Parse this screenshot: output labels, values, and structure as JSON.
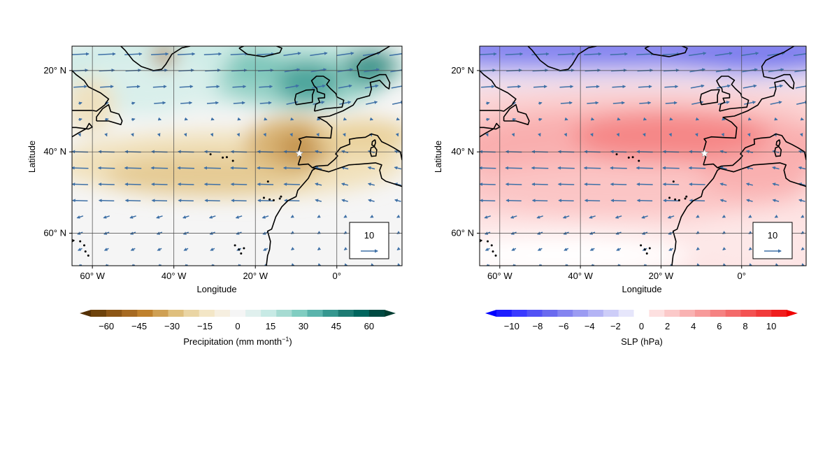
{
  "panels": [
    {
      "id": "precip",
      "xlabel": "Longitude",
      "ylabel": "Latitude",
      "lon_ticks": [
        "60° W",
        "40° W",
        "20° W",
        "0°"
      ],
      "lat_ticks": [
        "60° N",
        "40° N",
        "20° N"
      ],
      "lon_range": [
        -65,
        16
      ],
      "lat_range": [
        12,
        66
      ],
      "grid_lons": [
        -60,
        -40,
        -20,
        0
      ],
      "grid_lats": [
        20,
        40,
        60
      ],
      "reference_vector": "10",
      "colorbar": {
        "label_main": "Precipitation (mm month",
        "label_sup": "−1",
        "label_end": ")",
        "ticks": [
          "−60",
          "−45",
          "−30",
          "−15",
          "0",
          "15",
          "30",
          "45",
          "60"
        ],
        "colors": [
          "#543005",
          "#6e430c",
          "#8c5616",
          "#a66a22",
          "#bf812d",
          "#cfa054",
          "#dfbf7d",
          "#ead5a4",
          "#f3e6c6",
          "#f6efe0",
          "#f5f5f5",
          "#e0f0ee",
          "#c7eae5",
          "#a6dbd2",
          "#80cdc1",
          "#5ab4ac",
          "#35978f",
          "#1d7b73",
          "#01665e",
          "#004a42",
          "#003c30"
        ]
      }
    },
    {
      "id": "slp",
      "xlabel": "Longitude",
      "ylabel": "Latitude",
      "lon_ticks": [
        "60° W",
        "40° W",
        "20° W",
        "0°"
      ],
      "lat_ticks": [
        "60° N",
        "40° N",
        "20° N"
      ],
      "lon_range": [
        -65,
        16
      ],
      "lat_range": [
        12,
        66
      ],
      "grid_lons": [
        -60,
        -40,
        -20,
        0
      ],
      "grid_lats": [
        20,
        40,
        60
      ],
      "reference_vector": "10",
      "colorbar": {
        "label_main": "SLP (hPa)",
        "label_sup": "",
        "label_end": "",
        "ticks": [
          "−10",
          "−8",
          "−6",
          "−4",
          "−2",
          "0",
          "2",
          "4",
          "6",
          "8",
          "10"
        ],
        "colors": [
          "#0000ff",
          "#1d1dff",
          "#3a3aff",
          "#5252f5",
          "#6a6aef",
          "#8484f0",
          "#9c9cf2",
          "#b4b4f5",
          "#cdcdf8",
          "#e6e6fb",
          "#ffffff",
          "#fde0e0",
          "#fbc9c9",
          "#f9b2b2",
          "#f79a9a",
          "#f58282",
          "#f36a6a",
          "#f35252",
          "#f13a3a",
          "#f01d1d",
          "#ef0000"
        ]
      }
    }
  ],
  "colors": {
    "wind_vector": "#3e70a6",
    "coastline": "#000000",
    "gridline": "#444444"
  },
  "location_marker": "white-star-icon"
}
